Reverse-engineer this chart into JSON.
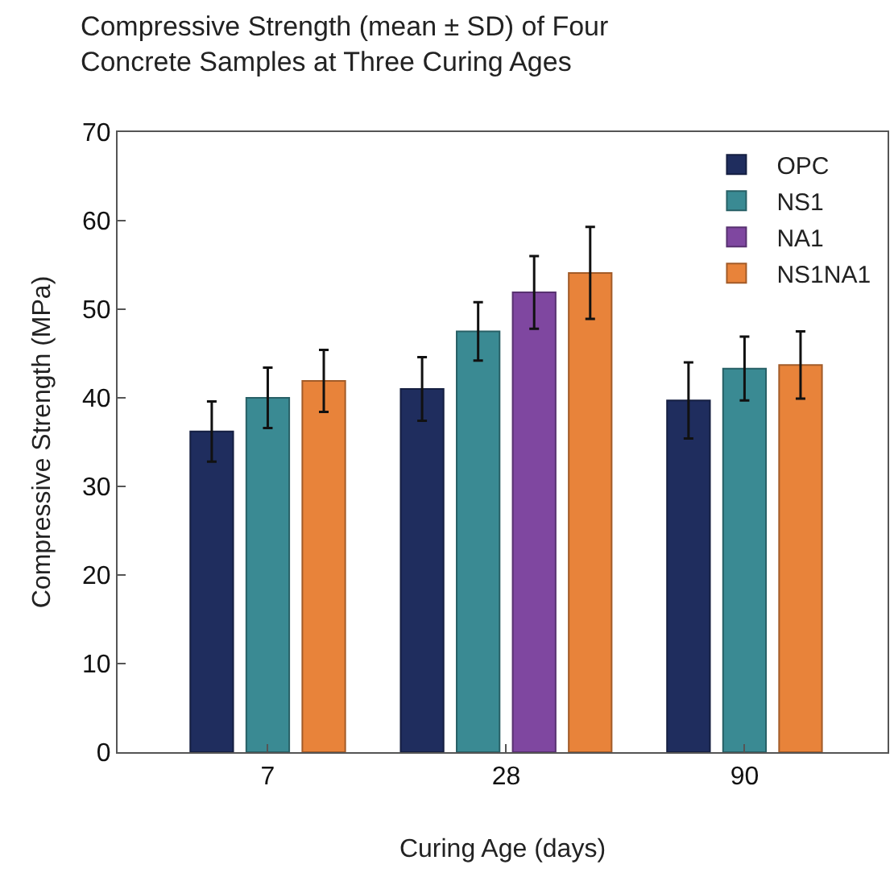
{
  "chart_data": {
    "type": "bar",
    "title": "Compressive Strength (mean ± SD) of Four\nConcrete Samples at Three Curing Ages",
    "xlabel": "Curing Age (days)",
    "ylabel": "Compressive Strength (MPa)",
    "categories": [
      "7",
      "28",
      "90"
    ],
    "series": [
      {
        "name": "OPC",
        "color": "#1f2d5e",
        "values": [
          36.2,
          41.0,
          39.7
        ],
        "errors": [
          3.4,
          3.6,
          4.3
        ]
      },
      {
        "name": "NS1",
        "color": "#3a8a93",
        "values": [
          40.0,
          47.5,
          43.3
        ],
        "errors": [
          3.4,
          3.3,
          3.6
        ]
      },
      {
        "name": "NA1",
        "color": "#7f47a0",
        "values": [
          null,
          51.9,
          null
        ],
        "errors": [
          null,
          4.1,
          null
        ]
      },
      {
        "name": "NS1NA1",
        "color": "#e8833a",
        "values": [
          41.9,
          54.1,
          43.7
        ],
        "errors": [
          3.5,
          5.2,
          3.8
        ]
      }
    ],
    "ylim": [
      0,
      70
    ],
    "yticks": [
      0,
      10,
      20,
      30,
      40,
      50,
      60,
      70
    ],
    "legend": "top right"
  }
}
